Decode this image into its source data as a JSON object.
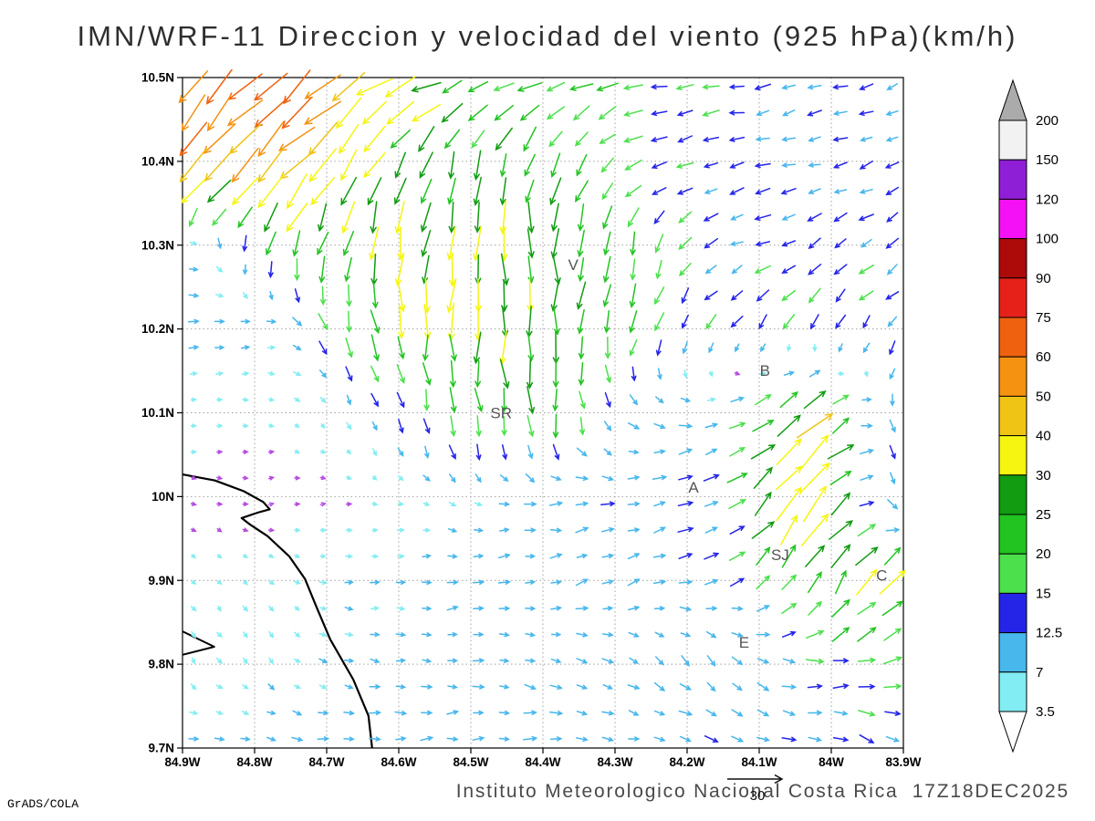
{
  "title": "IMN/WRF-11 Direccion y velocidad del viento (925 hPa)(km/h)",
  "footer": {
    "caption": "Instituto Meteorologico Nacional Costa Rica  17Z18DEC2025",
    "credit": "GrADS/COLA",
    "reference_vector_label": "30"
  },
  "map": {
    "lat_ticks": [
      "10.5N",
      "10.4N",
      "10.3N",
      "10.2N",
      "10.1N",
      "10N",
      "9.9N",
      "9.8N",
      "9.7N"
    ],
    "lon_ticks": [
      "84.9W",
      "84.8W",
      "84.7W",
      "84.6W",
      "84.5W",
      "84.4W",
      "84.3W",
      "84.2W",
      "84.1W",
      "84W",
      "83.9W"
    ],
    "city_labels": [
      {
        "text": "V",
        "u": 0.542,
        "v": 0.287
      },
      {
        "text": "B",
        "u": 0.808,
        "v": 0.445
      },
      {
        "text": "SR",
        "u": 0.442,
        "v": 0.508
      },
      {
        "text": "A",
        "u": 0.709,
        "v": 0.619
      },
      {
        "text": "SJ",
        "u": 0.829,
        "v": 0.72
      },
      {
        "text": "C",
        "u": 0.97,
        "v": 0.75
      },
      {
        "text": "E",
        "u": 0.779,
        "v": 0.85
      }
    ],
    "coastline": {
      "main": [
        [
          0,
          0.592
        ],
        [
          0.045,
          0.601
        ],
        [
          0.085,
          0.617
        ],
        [
          0.112,
          0.633
        ],
        [
          0.121,
          0.644
        ],
        [
          0.104,
          0.649
        ],
        [
          0.082,
          0.657
        ],
        [
          0.094,
          0.667
        ],
        [
          0.118,
          0.684
        ],
        [
          0.148,
          0.714
        ],
        [
          0.17,
          0.748
        ],
        [
          0.186,
          0.79
        ],
        [
          0.205,
          0.838
        ],
        [
          0.237,
          0.898
        ],
        [
          0.258,
          0.952
        ],
        [
          0.263,
          1.0
        ]
      ],
      "spike": [
        [
          0,
          0.826
        ],
        [
          0.044,
          0.849
        ],
        [
          0,
          0.861
        ]
      ]
    }
  },
  "colorbar": {
    "labels": [
      "200",
      "150",
      "120",
      "100",
      "90",
      "75",
      "60",
      "50",
      "40",
      "30",
      "25",
      "20",
      "15",
      "12.5",
      "7",
      "3.5"
    ]
  },
  "chart_data": {
    "type": "quiver",
    "title": "IMN/WRF-11 Direccion y velocidad del viento (925 hPa)(km/h)",
    "units": "km/h",
    "pressure_level": "925 hPa",
    "valid_time": "17Z18DEC2025",
    "lon_range_deg_west": [
      84.9,
      83.9
    ],
    "lat_range_deg_north": [
      9.7,
      10.5
    ],
    "reference_speed_kmh": 30,
    "speed_levels_kmh": [
      3.5,
      7,
      12.5,
      15,
      20,
      25,
      30,
      40,
      50,
      60,
      75,
      90,
      100,
      120,
      150,
      200
    ],
    "band_colors": [
      "#82EDF2",
      "#47B7EC",
      "#2525E8",
      "#4CE04C",
      "#22C422",
      "#119C11",
      "#F5F511",
      "#F0C414",
      "#F59211",
      "#F0610F",
      "#E62119",
      "#AD0A0A",
      "#F511F5",
      "#8F1FD6",
      "#F2F2F2"
    ],
    "under_color": "#FFFFFF",
    "over_color": "#ABABAB",
    "calm_arrow_color": "#B44BE0",
    "grid": {
      "nx": 28,
      "ny": 26
    },
    "control_field": {
      "note": "9x9 coarse field over full domain, row 0 = 10.5N (top) to row 8 = 9.7N; dirs: math degrees (0=E,90=N) toward which wind blows; speeds km/h",
      "dirs_deg": [
        [
          225,
          225,
          210,
          200,
          200,
          195,
          190,
          195,
          200
        ],
        [
          230,
          225,
          235,
          250,
          255,
          200,
          190,
          195,
          205
        ],
        [
          10,
          250,
          260,
          265,
          270,
          260,
          200,
          210,
          215
        ],
        [
          5,
          0,
          280,
          270,
          275,
          250,
          230,
          240,
          225
        ],
        [
          0,
          350,
          300,
          280,
          270,
          320,
          20,
          45,
          270
        ],
        [
          340,
          20,
          0,
          330,
          0,
          10,
          30,
          50,
          280
        ],
        [
          310,
          320,
          0,
          10,
          15,
          20,
          10,
          60,
          45
        ],
        [
          300,
          310,
          350,
          0,
          340,
          330,
          300,
          0,
          20
        ],
        [
          0,
          355,
          0,
          5,
          0,
          350,
          345,
          340,
          330
        ]
      ],
      "speeds_kmh": [
        [
          60,
          75,
          40,
          25,
          22,
          18,
          14,
          13,
          12
        ],
        [
          55,
          45,
          30,
          25,
          24,
          16,
          13,
          12,
          12
        ],
        [
          10,
          22,
          28,
          30,
          28,
          22,
          13,
          14,
          13
        ],
        [
          9,
          8,
          25,
          32,
          30,
          18,
          14,
          16,
          13
        ],
        [
          4,
          4,
          8,
          20,
          25,
          10,
          12,
          35,
          15
        ],
        [
          2.5,
          2.5,
          3,
          6,
          10,
          12,
          14,
          45,
          18
        ],
        [
          5,
          5,
          7,
          9,
          10,
          11,
          12,
          25,
          30
        ],
        [
          6,
          6,
          8,
          9,
          9,
          10,
          12,
          15,
          18
        ],
        [
          8,
          9,
          10,
          10,
          11,
          11,
          12,
          13,
          14
        ]
      ]
    }
  }
}
